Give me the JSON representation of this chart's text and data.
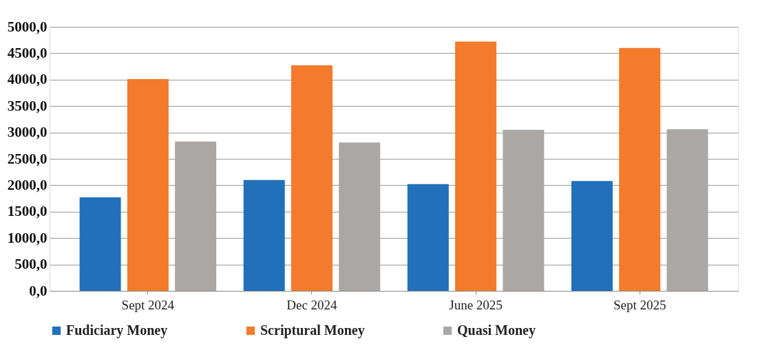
{
  "chart_data": {
    "type": "bar",
    "categories": [
      "Sept 2024",
      "Dec 2024",
      "June 2025",
      "Sept 2025"
    ],
    "series": [
      {
        "name": "Fudiciary Money",
        "color": "#2270b9",
        "values": [
          1770,
          2100,
          2020,
          2080
        ]
      },
      {
        "name": "Scriptural Money",
        "color": "#f37b2b",
        "values": [
          4010,
          4270,
          4720,
          4600
        ]
      },
      {
        "name": "Quasi Money",
        "color": "#aaa7a4",
        "values": [
          2830,
          2810,
          3050,
          3060
        ]
      }
    ],
    "ylim": [
      0,
      5000
    ],
    "yticks": [
      {
        "value": 0,
        "label": "0,0"
      },
      {
        "value": 500,
        "label": "500,0"
      },
      {
        "value": 1000,
        "label": "1000,0"
      },
      {
        "value": 1500,
        "label": "1500,0"
      },
      {
        "value": 2000,
        "label": "2000,0"
      },
      {
        "value": 2500,
        "label": "2500,0"
      },
      {
        "value": 3000,
        "label": "3000,0"
      },
      {
        "value": 3500,
        "label": "3500,0"
      },
      {
        "value": 4000,
        "label": "4000,0"
      },
      {
        "value": 4500,
        "label": "4500,0"
      },
      {
        "value": 5000,
        "label": "5000,0"
      }
    ],
    "grid": "y",
    "legend": "bottom"
  }
}
